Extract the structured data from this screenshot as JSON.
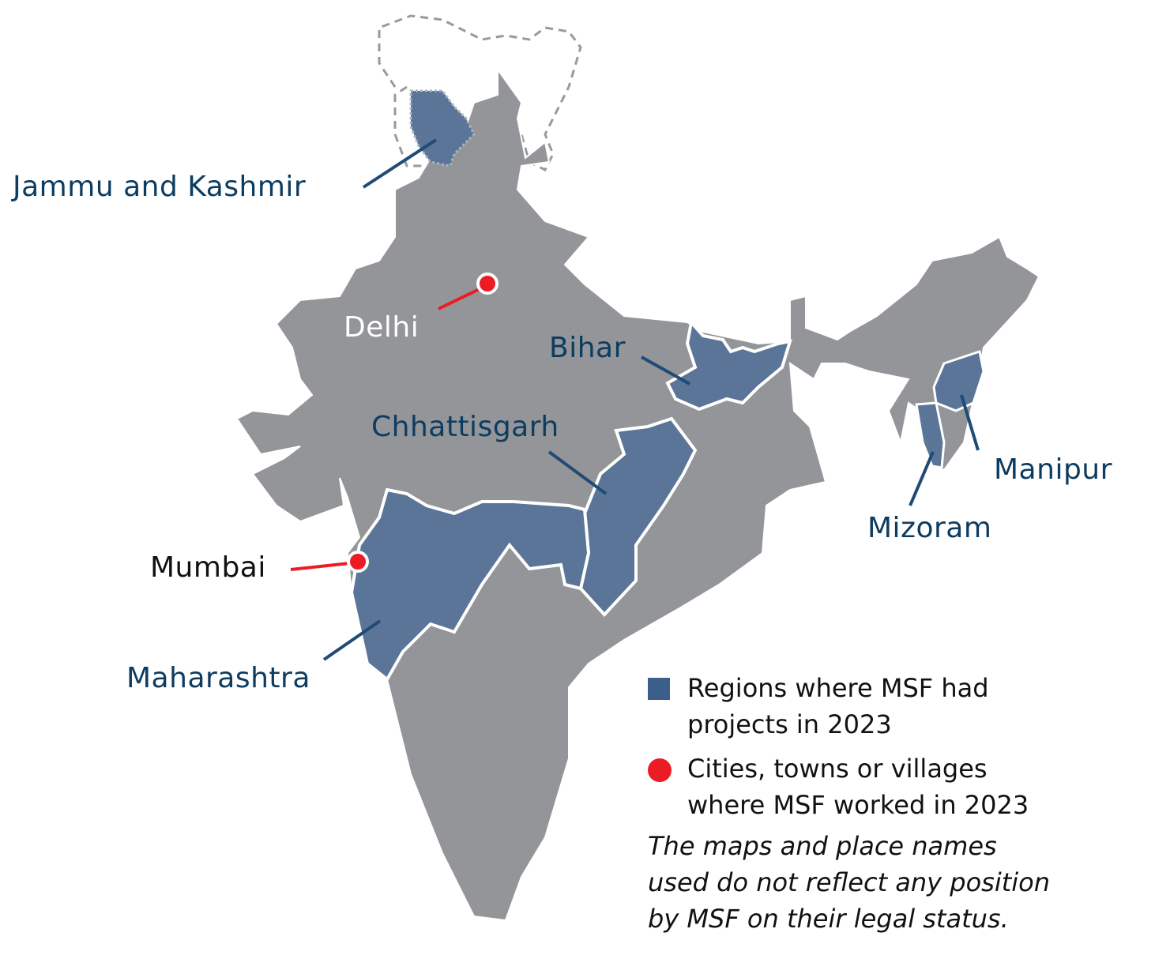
{
  "colors": {
    "country": "#939598",
    "msf_region": "#5a7598",
    "legend_square": "#3c5f8a",
    "city": "#ec1c24",
    "label": "#0d3c61",
    "border": "#ffffff",
    "disputed": "#9a9a9a"
  },
  "labels": {
    "jammu_kashmir": "Jammu and Kashmir",
    "delhi": "Delhi",
    "bihar": "Bihar",
    "chhattisgarh": "Chhattisgarh",
    "mumbai": "Mumbai",
    "maharashtra": "Maharashtra",
    "manipur": "Manipur",
    "mizoram": "Mizoram"
  },
  "legend": {
    "regions": "Regions where MSF had projects in 2023",
    "regions_line1": "Regions where MSF had",
    "regions_line2": "projects in 2023",
    "cities_line1": "Cities, towns or villages",
    "cities_line2": "where MSF worked in 2023",
    "note_line1": "The maps and place names",
    "note_line2": "used do not reflect any position",
    "note_line3": "by MSF on their legal status."
  }
}
